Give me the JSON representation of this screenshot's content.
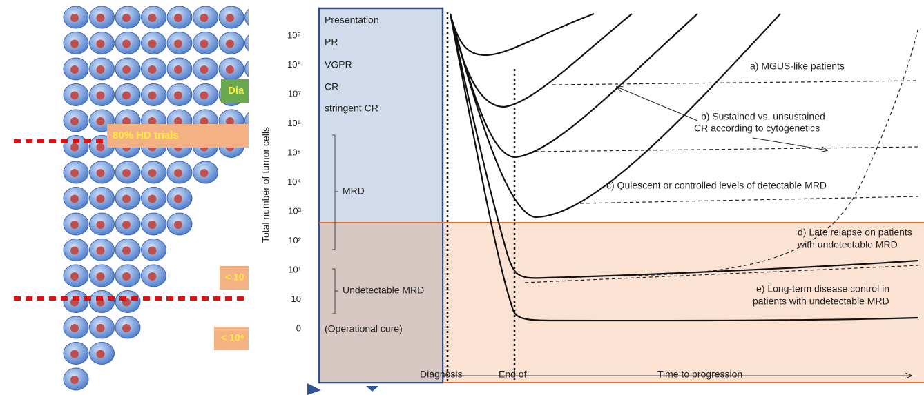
{
  "left_panel": {
    "labels": [
      "Dia",
      "80% HD trials",
      "< 10",
      "< 10⁶"
    ]
  },
  "chart": {
    "y_axis_label": "Total number of tumor cells",
    "y_ticks": [
      "10⁹",
      "10⁸",
      "10⁷",
      "10⁶",
      "10⁵",
      "10⁴",
      "10³",
      "10²",
      "10¹",
      "10",
      "0"
    ],
    "levels": [
      "Presentation",
      "PR",
      "VGPR",
      "CR",
      "stringent CR",
      "MRD",
      "Undetectable MRD",
      "(Operational cure)"
    ],
    "annotations": [
      "a) MGUS-like patients",
      "b) Sustained vs. unsustained",
      "CR according to cytogenetics",
      "c) Quiescent or controlled levels of detectable MRD",
      "d) Late relapse on patients",
      "with undetectable MRD",
      "e) Long-term disease control in",
      "patients with undetectable MRD"
    ],
    "x_labels": [
      "Diagnosis",
      "End of",
      "Time to progression"
    ]
  }
}
